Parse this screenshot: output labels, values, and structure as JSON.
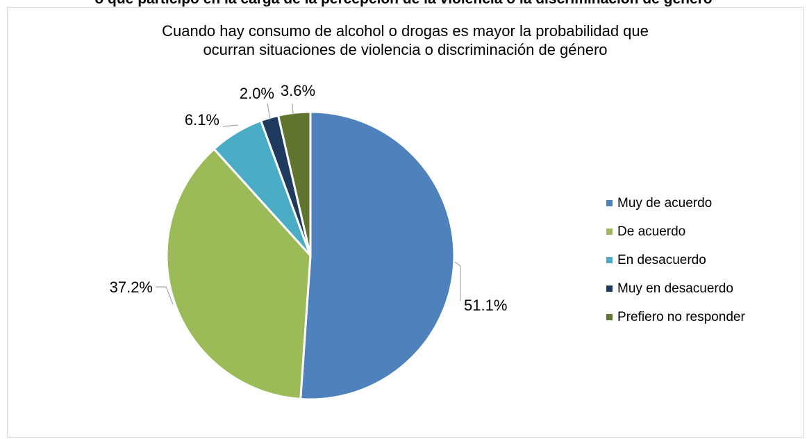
{
  "header_fragment": "o que participó en la carga de la percepción de la violencia o la discriminación de género",
  "chart_data": {
    "type": "pie",
    "title_lines": [
      "Cuando hay consumo de alcohol o drogas es mayor la probabilidad que",
      "ocurran situaciones de violencia o discriminación de género"
    ],
    "slices": [
      {
        "label": "Muy de acuerdo",
        "value": 51.1,
        "display": "51.1%",
        "color": "#4f81bd"
      },
      {
        "label": "De acuerdo",
        "value": 37.2,
        "display": "37.2%",
        "color": "#9bbb59"
      },
      {
        "label": "En desacuerdo",
        "value": 6.1,
        "display": "6.1%",
        "color": "#4bacc6"
      },
      {
        "label": "Muy en desacuerdo",
        "value": 2.0,
        "display": "2.0%",
        "color": "#1f3a5f"
      },
      {
        "label": "Prefiero no responder",
        "value": 3.6,
        "display": "3.6%",
        "color": "#5f7530"
      }
    ],
    "legend_position": "right",
    "start_angle_deg": 0,
    "direction": "clockwise"
  }
}
